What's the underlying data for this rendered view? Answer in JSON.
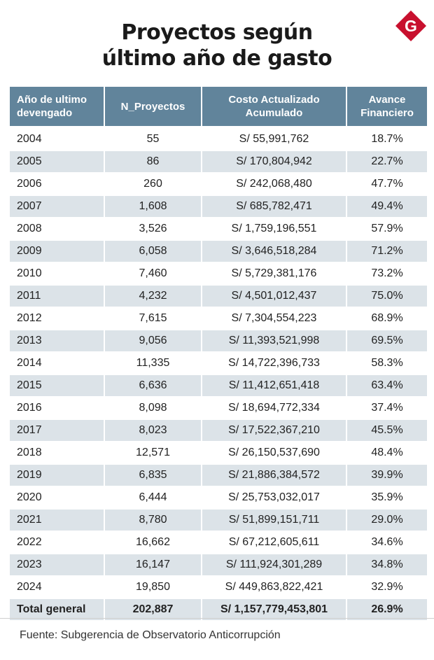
{
  "title_line1": "Proyectos según",
  "title_line2": "último año de gasto",
  "logo_letter": "G",
  "colors": {
    "header": "#61849b",
    "alt_row": "#dce3e8",
    "logo": "#c8102e"
  },
  "chart_data": {
    "type": "table",
    "columns": [
      "Año de ultimo devengado",
      "N_Proyectos",
      "Costo Actualizado Acumulado",
      "Avance Financiero"
    ],
    "rows": [
      [
        "2004",
        "55",
        "S/ 55,991,762",
        "18.7%"
      ],
      [
        "2005",
        "86",
        "S/ 170,804,942",
        "22.7%"
      ],
      [
        "2006",
        "260",
        "S/ 242,068,480",
        "47.7%"
      ],
      [
        "2007",
        "1,608",
        "S/ 685,782,471",
        "49.4%"
      ],
      [
        "2008",
        "3,526",
        "S/ 1,759,196,551",
        "57.9%"
      ],
      [
        "2009",
        "6,058",
        "S/ 3,646,518,284",
        "71.2%"
      ],
      [
        "2010",
        "7,460",
        "S/ 5,729,381,176",
        "73.2%"
      ],
      [
        "2011",
        "4,232",
        "S/ 4,501,012,437",
        "75.0%"
      ],
      [
        "2012",
        "7,615",
        "S/ 7,304,554,223",
        "68.9%"
      ],
      [
        "2013",
        "9,056",
        "S/ 11,393,521,998",
        "69.5%"
      ],
      [
        "2014",
        "11,335",
        "S/ 14,722,396,733",
        "58.3%"
      ],
      [
        "2015",
        "6,636",
        "S/ 11,412,651,418",
        "63.4%"
      ],
      [
        "2016",
        "8,098",
        "S/ 18,694,772,334",
        "37.4%"
      ],
      [
        "2017",
        "8,023",
        "S/ 17,522,367,210",
        "45.5%"
      ],
      [
        "2018",
        "12,571",
        "S/ 26,150,537,690",
        "48.4%"
      ],
      [
        "2019",
        "6,835",
        "S/ 21,886,384,572",
        "39.9%"
      ],
      [
        "2020",
        "6,444",
        "S/ 25,753,032,017",
        "35.9%"
      ],
      [
        "2021",
        "8,780",
        "S/ 51,899,151,711",
        "29.0%"
      ],
      [
        "2022",
        "16,662",
        "S/ 67,212,605,611",
        "34.6%"
      ],
      [
        "2023",
        "16,147",
        "S/ 111,924,301,289",
        "34.8%"
      ],
      [
        "2024",
        "19,850",
        "S/ 449,863,822,421",
        "32.9%"
      ]
    ],
    "total": [
      "Total general",
      "202,887",
      "S/ 1,157,779,453,801",
      "26.9%"
    ]
  },
  "source": "Fuente: Subgerencia de Observatorio Anticorrupción"
}
